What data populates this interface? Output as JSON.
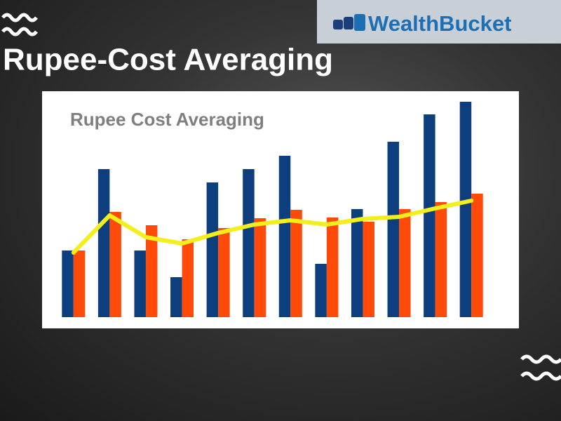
{
  "header": {
    "title": "Rupee-Cost Averaging",
    "brand": "WealthBucket"
  },
  "chart_data": {
    "type": "bar",
    "title": "Rupee Cost Averaging",
    "categories": [
      null,
      null,
      null,
      null,
      null,
      null,
      null,
      null,
      null,
      null,
      null,
      null
    ],
    "ylim": [
      0,
      320
    ],
    "series": [
      {
        "color": "#0d3f7e",
        "values": [
          95,
          211,
          95,
          57,
          192,
          211,
          230,
          76,
          154,
          250,
          289,
          307
        ]
      },
      {
        "color": "#ff4a0a",
        "values": [
          95,
          150,
          131,
          111,
          127,
          141,
          153,
          142,
          136,
          154,
          164,
          176
        ]
      },
      {
        "type": "line",
        "color": "#f4ee1c",
        "values": [
          92,
          145,
          114,
          105,
          120,
          132,
          138,
          132,
          140,
          143,
          155,
          166
        ]
      }
    ]
  }
}
